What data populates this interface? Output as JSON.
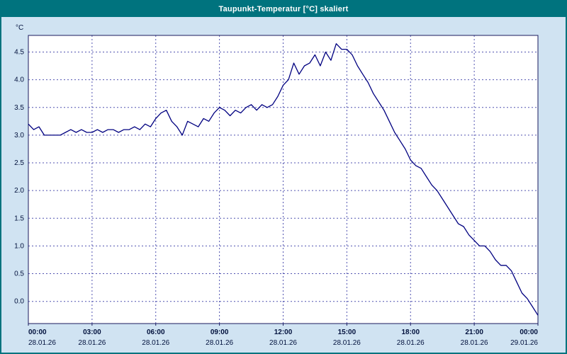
{
  "title": "Taupunkt-Temperatur [°C] skaliert",
  "accent_color": "#00737e",
  "background_color": "#d0e3f2",
  "chart_data": {
    "type": "line",
    "title": "Taupunkt-Temperatur [°C] skaliert",
    "xlabel": "",
    "ylabel": "°C",
    "ylim": [
      -0.4,
      4.8
    ],
    "xlim": [
      0,
      24
    ],
    "grid": true,
    "line_color": "#000080",
    "yticks": [
      0.0,
      0.5,
      1.0,
      1.5,
      2.0,
      2.5,
      3.0,
      3.5,
      4.0,
      4.5
    ],
    "ytick_labels": [
      "0.0",
      "0.5",
      "1.0",
      "1.5",
      "2.0",
      "2.5",
      "3.0",
      "3.5",
      "4.0",
      "4.5"
    ],
    "xticks": [
      0,
      3,
      6,
      9,
      12,
      15,
      18,
      21,
      24
    ],
    "xtick_times": [
      "00:00",
      "03:00",
      "06:00",
      "09:00",
      "12:00",
      "15:00",
      "18:00",
      "21:00",
      "00:00"
    ],
    "xtick_dates": [
      "28.01.26",
      "28.01.26",
      "28.01.26",
      "28.01.26",
      "28.01.26",
      "28.01.26",
      "28.01.26",
      "28.01.26",
      "29.01.26"
    ],
    "series": [
      {
        "name": "Taupunkt-Temperatur",
        "x_start_hours": 0,
        "x_step_hours": 0.25,
        "values": [
          3.2,
          3.1,
          3.15,
          3.0,
          3.0,
          3.0,
          3.0,
          3.05,
          3.1,
          3.05,
          3.1,
          3.05,
          3.05,
          3.1,
          3.05,
          3.1,
          3.1,
          3.05,
          3.1,
          3.1,
          3.15,
          3.1,
          3.2,
          3.15,
          3.3,
          3.4,
          3.45,
          3.25,
          3.15,
          3.0,
          3.25,
          3.2,
          3.15,
          3.3,
          3.25,
          3.4,
          3.5,
          3.45,
          3.35,
          3.45,
          3.4,
          3.5,
          3.55,
          3.45,
          3.55,
          3.5,
          3.55,
          3.7,
          3.9,
          4.0,
          4.3,
          4.1,
          4.25,
          4.3,
          4.45,
          4.25,
          4.5,
          4.35,
          4.65,
          4.55,
          4.55,
          4.45,
          4.25,
          4.1,
          3.95,
          3.75,
          3.6,
          3.45,
          3.25,
          3.05,
          2.9,
          2.75,
          2.55,
          2.45,
          2.4,
          2.25,
          2.1,
          2.0,
          1.85,
          1.7,
          1.55,
          1.4,
          1.35,
          1.2,
          1.1,
          1.0,
          1.0,
          0.9,
          0.75,
          0.65,
          0.65,
          0.55,
          0.35,
          0.15,
          0.05,
          -0.1,
          -0.25
        ]
      }
    ]
  }
}
